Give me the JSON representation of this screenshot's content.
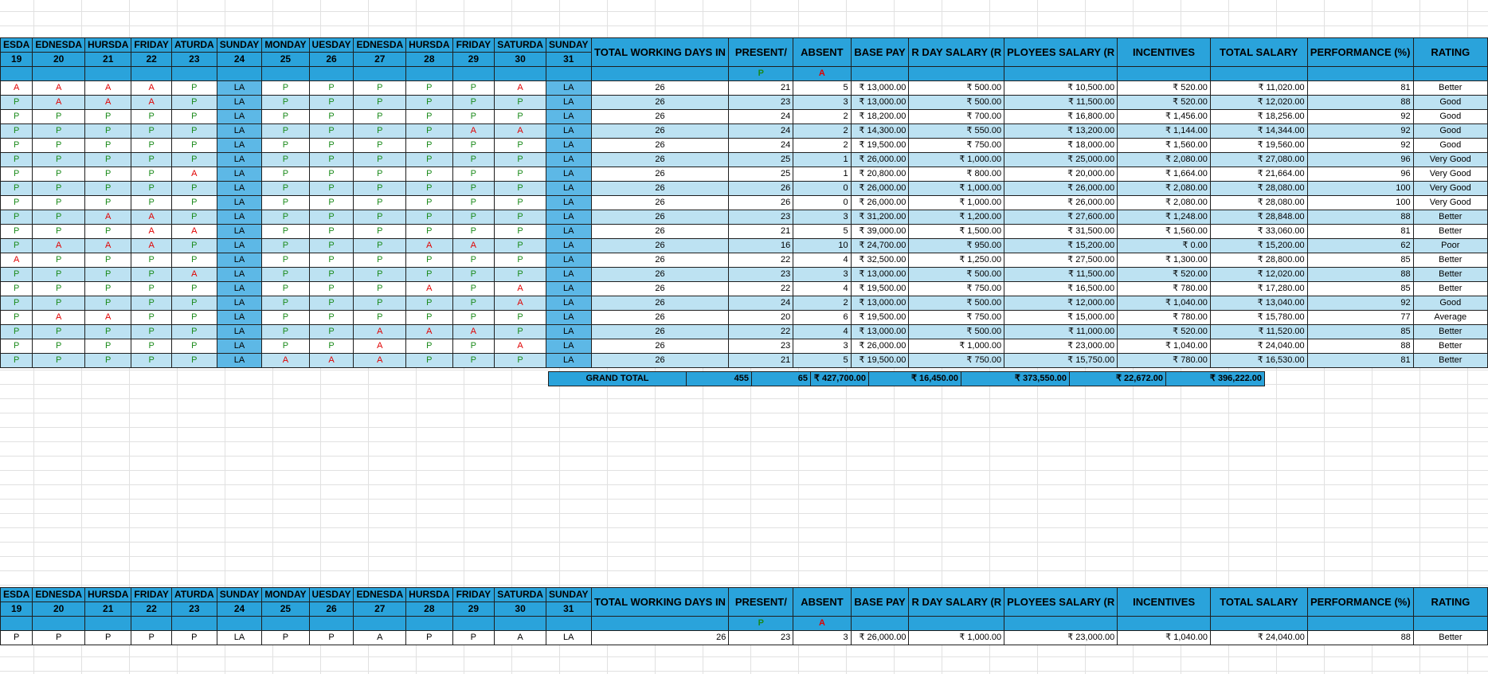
{
  "header": {
    "days": [
      "ESDA",
      "EDNESDA",
      "HURSDA",
      "FRIDAY",
      "ATURDA",
      "SUNDAY",
      "MONDAY",
      "UESDAY",
      "EDNESDA",
      "HURSDA",
      "FRIDAY",
      "SATURDA",
      "SUNDAY"
    ],
    "dates": [
      "19",
      "20",
      "21",
      "22",
      "23",
      "24",
      "25",
      "26",
      "27",
      "28",
      "29",
      "30",
      "31"
    ],
    "cols": {
      "total_working_days": "TOTAL WORKING DAYS IN",
      "present": "PRESENT/",
      "absent": "ABSENT",
      "base_pay": "BASE PAY",
      "per_day_salary": "R DAY SALARY (R",
      "employees_salary": "PLOYEES SALARY (R",
      "incentives": "INCENTIVES",
      "total_salary": "TOTAL SALARY",
      "performance": "PERFORMANCE (%)",
      "rating": "RATING"
    },
    "present_marker": "P",
    "absent_marker": "A"
  },
  "rows": [
    {
      "att": [
        "A",
        "A",
        "A",
        "A",
        "P",
        "LA",
        "P",
        "P",
        "P",
        "P",
        "P",
        "A",
        "LA"
      ],
      "twd": "26",
      "present": "21",
      "absent": "5",
      "base": "₹ 13,000.00",
      "perday": "₹ 500.00",
      "emp": "₹ 10,500.00",
      "inc": "₹ 520.00",
      "total": "₹ 11,020.00",
      "perf": "81",
      "rating": "Better"
    },
    {
      "att": [
        "P",
        "A",
        "A",
        "A",
        "P",
        "LA",
        "P",
        "P",
        "P",
        "P",
        "P",
        "P",
        "LA"
      ],
      "twd": "26",
      "present": "23",
      "absent": "3",
      "base": "₹ 13,000.00",
      "perday": "₹ 500.00",
      "emp": "₹ 11,500.00",
      "inc": "₹ 520.00",
      "total": "₹ 12,020.00",
      "perf": "88",
      "rating": "Good"
    },
    {
      "att": [
        "P",
        "P",
        "P",
        "P",
        "P",
        "LA",
        "P",
        "P",
        "P",
        "P",
        "P",
        "P",
        "LA"
      ],
      "twd": "26",
      "present": "24",
      "absent": "2",
      "base": "₹ 18,200.00",
      "perday": "₹ 700.00",
      "emp": "₹ 16,800.00",
      "inc": "₹ 1,456.00",
      "total": "₹ 18,256.00",
      "perf": "92",
      "rating": "Good"
    },
    {
      "att": [
        "P",
        "P",
        "P",
        "P",
        "P",
        "LA",
        "P",
        "P",
        "P",
        "P",
        "A",
        "A",
        "LA"
      ],
      "twd": "26",
      "present": "24",
      "absent": "2",
      "base": "₹ 14,300.00",
      "perday": "₹ 550.00",
      "emp": "₹ 13,200.00",
      "inc": "₹ 1,144.00",
      "total": "₹ 14,344.00",
      "perf": "92",
      "rating": "Good"
    },
    {
      "att": [
        "P",
        "P",
        "P",
        "P",
        "P",
        "LA",
        "P",
        "P",
        "P",
        "P",
        "P",
        "P",
        "LA"
      ],
      "twd": "26",
      "present": "24",
      "absent": "2",
      "base": "₹ 19,500.00",
      "perday": "₹ 750.00",
      "emp": "₹ 18,000.00",
      "inc": "₹ 1,560.00",
      "total": "₹ 19,560.00",
      "perf": "92",
      "rating": "Good"
    },
    {
      "att": [
        "P",
        "P",
        "P",
        "P",
        "P",
        "LA",
        "P",
        "P",
        "P",
        "P",
        "P",
        "P",
        "LA"
      ],
      "twd": "26",
      "present": "25",
      "absent": "1",
      "base": "₹ 26,000.00",
      "perday": "₹ 1,000.00",
      "emp": "₹ 25,000.00",
      "inc": "₹ 2,080.00",
      "total": "₹ 27,080.00",
      "perf": "96",
      "rating": "Very Good"
    },
    {
      "att": [
        "P",
        "P",
        "P",
        "P",
        "A",
        "LA",
        "P",
        "P",
        "P",
        "P",
        "P",
        "P",
        "LA"
      ],
      "twd": "26",
      "present": "25",
      "absent": "1",
      "base": "₹ 20,800.00",
      "perday": "₹ 800.00",
      "emp": "₹ 20,000.00",
      "inc": "₹ 1,664.00",
      "total": "₹ 21,664.00",
      "perf": "96",
      "rating": "Very Good"
    },
    {
      "att": [
        "P",
        "P",
        "P",
        "P",
        "P",
        "LA",
        "P",
        "P",
        "P",
        "P",
        "P",
        "P",
        "LA"
      ],
      "twd": "26",
      "present": "26",
      "absent": "0",
      "base": "₹ 26,000.00",
      "perday": "₹ 1,000.00",
      "emp": "₹ 26,000.00",
      "inc": "₹ 2,080.00",
      "total": "₹ 28,080.00",
      "perf": "100",
      "rating": "Very Good"
    },
    {
      "att": [
        "P",
        "P",
        "P",
        "P",
        "P",
        "LA",
        "P",
        "P",
        "P",
        "P",
        "P",
        "P",
        "LA"
      ],
      "twd": "26",
      "present": "26",
      "absent": "0",
      "base": "₹ 26,000.00",
      "perday": "₹ 1,000.00",
      "emp": "₹ 26,000.00",
      "inc": "₹ 2,080.00",
      "total": "₹ 28,080.00",
      "perf": "100",
      "rating": "Very Good"
    },
    {
      "att": [
        "P",
        "P",
        "A",
        "A",
        "P",
        "LA",
        "P",
        "P",
        "P",
        "P",
        "P",
        "P",
        "LA"
      ],
      "twd": "26",
      "present": "23",
      "absent": "3",
      "base": "₹ 31,200.00",
      "perday": "₹ 1,200.00",
      "emp": "₹ 27,600.00",
      "inc": "₹ 1,248.00",
      "total": "₹ 28,848.00",
      "perf": "88",
      "rating": "Better"
    },
    {
      "att": [
        "P",
        "P",
        "P",
        "A",
        "A",
        "LA",
        "P",
        "P",
        "P",
        "P",
        "P",
        "P",
        "LA"
      ],
      "twd": "26",
      "present": "21",
      "absent": "5",
      "base": "₹ 39,000.00",
      "perday": "₹ 1,500.00",
      "emp": "₹ 31,500.00",
      "inc": "₹ 1,560.00",
      "total": "₹ 33,060.00",
      "perf": "81",
      "rating": "Better"
    },
    {
      "att": [
        "P",
        "A",
        "A",
        "A",
        "P",
        "LA",
        "P",
        "P",
        "P",
        "A",
        "A",
        "P",
        "LA"
      ],
      "twd": "26",
      "present": "16",
      "absent": "10",
      "base": "₹ 24,700.00",
      "perday": "₹ 950.00",
      "emp": "₹ 15,200.00",
      "inc": "₹ 0.00",
      "total": "₹ 15,200.00",
      "perf": "62",
      "rating": "Poor"
    },
    {
      "att": [
        "A",
        "P",
        "P",
        "P",
        "P",
        "LA",
        "P",
        "P",
        "P",
        "P",
        "P",
        "P",
        "LA"
      ],
      "twd": "26",
      "present": "22",
      "absent": "4",
      "base": "₹ 32,500.00",
      "perday": "₹ 1,250.00",
      "emp": "₹ 27,500.00",
      "inc": "₹ 1,300.00",
      "total": "₹ 28,800.00",
      "perf": "85",
      "rating": "Better"
    },
    {
      "att": [
        "P",
        "P",
        "P",
        "P",
        "A",
        "LA",
        "P",
        "P",
        "P",
        "P",
        "P",
        "P",
        "LA"
      ],
      "twd": "26",
      "present": "23",
      "absent": "3",
      "base": "₹ 13,000.00",
      "perday": "₹ 500.00",
      "emp": "₹ 11,500.00",
      "inc": "₹ 520.00",
      "total": "₹ 12,020.00",
      "perf": "88",
      "rating": "Better"
    },
    {
      "att": [
        "P",
        "P",
        "P",
        "P",
        "P",
        "LA",
        "P",
        "P",
        "P",
        "A",
        "P",
        "A",
        "LA"
      ],
      "twd": "26",
      "present": "22",
      "absent": "4",
      "base": "₹ 19,500.00",
      "perday": "₹ 750.00",
      "emp": "₹ 16,500.00",
      "inc": "₹ 780.00",
      "total": "₹ 17,280.00",
      "perf": "85",
      "rating": "Better"
    },
    {
      "att": [
        "P",
        "P",
        "P",
        "P",
        "P",
        "LA",
        "P",
        "P",
        "P",
        "P",
        "P",
        "A",
        "LA"
      ],
      "twd": "26",
      "present": "24",
      "absent": "2",
      "base": "₹ 13,000.00",
      "perday": "₹ 500.00",
      "emp": "₹ 12,000.00",
      "inc": "₹ 1,040.00",
      "total": "₹ 13,040.00",
      "perf": "92",
      "rating": "Good"
    },
    {
      "att": [
        "P",
        "A",
        "A",
        "P",
        "P",
        "LA",
        "P",
        "P",
        "P",
        "P",
        "P",
        "P",
        "LA"
      ],
      "twd": "26",
      "present": "20",
      "absent": "6",
      "base": "₹ 19,500.00",
      "perday": "₹ 750.00",
      "emp": "₹ 15,000.00",
      "inc": "₹ 780.00",
      "total": "₹ 15,780.00",
      "perf": "77",
      "rating": "Average"
    },
    {
      "att": [
        "P",
        "P",
        "P",
        "P",
        "P",
        "LA",
        "P",
        "P",
        "A",
        "A",
        "A",
        "P",
        "LA"
      ],
      "twd": "26",
      "present": "22",
      "absent": "4",
      "base": "₹ 13,000.00",
      "perday": "₹ 500.00",
      "emp": "₹ 11,000.00",
      "inc": "₹ 520.00",
      "total": "₹ 11,520.00",
      "perf": "85",
      "rating": "Better"
    },
    {
      "att": [
        "P",
        "P",
        "P",
        "P",
        "P",
        "LA",
        "P",
        "P",
        "A",
        "P",
        "P",
        "A",
        "LA"
      ],
      "twd": "26",
      "present": "23",
      "absent": "3",
      "base": "₹ 26,000.00",
      "perday": "₹ 1,000.00",
      "emp": "₹ 23,000.00",
      "inc": "₹ 1,040.00",
      "total": "₹ 24,040.00",
      "perf": "88",
      "rating": "Better"
    },
    {
      "att": [
        "P",
        "P",
        "P",
        "P",
        "P",
        "LA",
        "A",
        "A",
        "A",
        "P",
        "P",
        "P",
        "LA"
      ],
      "twd": "26",
      "present": "21",
      "absent": "5",
      "base": "₹ 19,500.00",
      "perday": "₹ 750.00",
      "emp": "₹ 15,750.00",
      "inc": "₹ 780.00",
      "total": "₹ 16,530.00",
      "perf": "81",
      "rating": "Better"
    }
  ],
  "grand_total": {
    "label": "GRAND TOTAL",
    "present": "455",
    "absent": "65",
    "base": "₹ 427,700.00",
    "perday": "₹ 16,450.00",
    "emp": "₹ 373,550.00",
    "inc": "₹ 22,672.00",
    "total": "₹ 396,222.00"
  },
  "lookup_row": {
    "att": [
      "P",
      "P",
      "P",
      "P",
      "P",
      "LA",
      "P",
      "P",
      "A",
      "P",
      "P",
      "A",
      "LA"
    ],
    "twd": "26",
    "present": "23",
    "absent": "3",
    "base": "₹ 26,000.00",
    "perday": "₹ 1,000.00",
    "emp": "₹ 23,000.00",
    "inc": "₹ 1,040.00",
    "total": "₹ 24,040.00",
    "perf": "88",
    "rating": "Better"
  }
}
